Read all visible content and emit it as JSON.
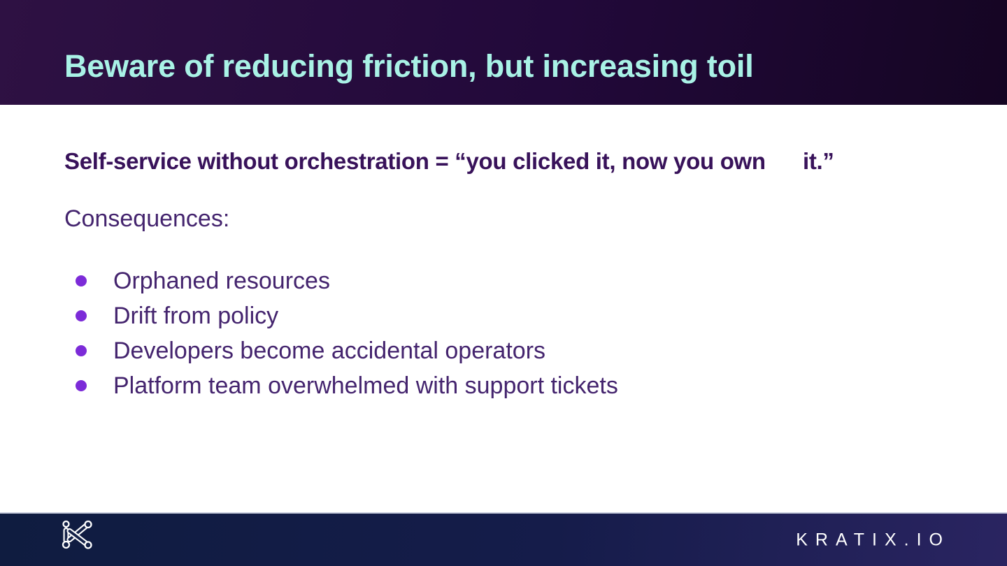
{
  "slide": {
    "header": {
      "title": "Beware of reducing friction, but increasing toil"
    },
    "body": {
      "statement": "Self-service without orchestration = “you clicked it, now you own      it.”",
      "consequences_label": "Consequences:",
      "bullets": [
        "Orphaned resources",
        "Drift from policy",
        "Developers become accidental operators",
        "Platform team overwhelmed with support tickets"
      ]
    },
    "footer": {
      "logo_icon": "kratix-k-logo",
      "wordmark": "KRATIX.IO"
    }
  },
  "colors": {
    "header_left": "#2e1143",
    "header_right": "#150523",
    "title_color": "#a9f2e6",
    "statement_color": "#38125a",
    "body_color": "#44246e",
    "bullet_dot": "#7c2bd8",
    "footer_left": "#0f1c40",
    "footer_right": "#2a2461",
    "footer_border": "#ccd1e0",
    "wordmark_color": "#ffffff"
  }
}
